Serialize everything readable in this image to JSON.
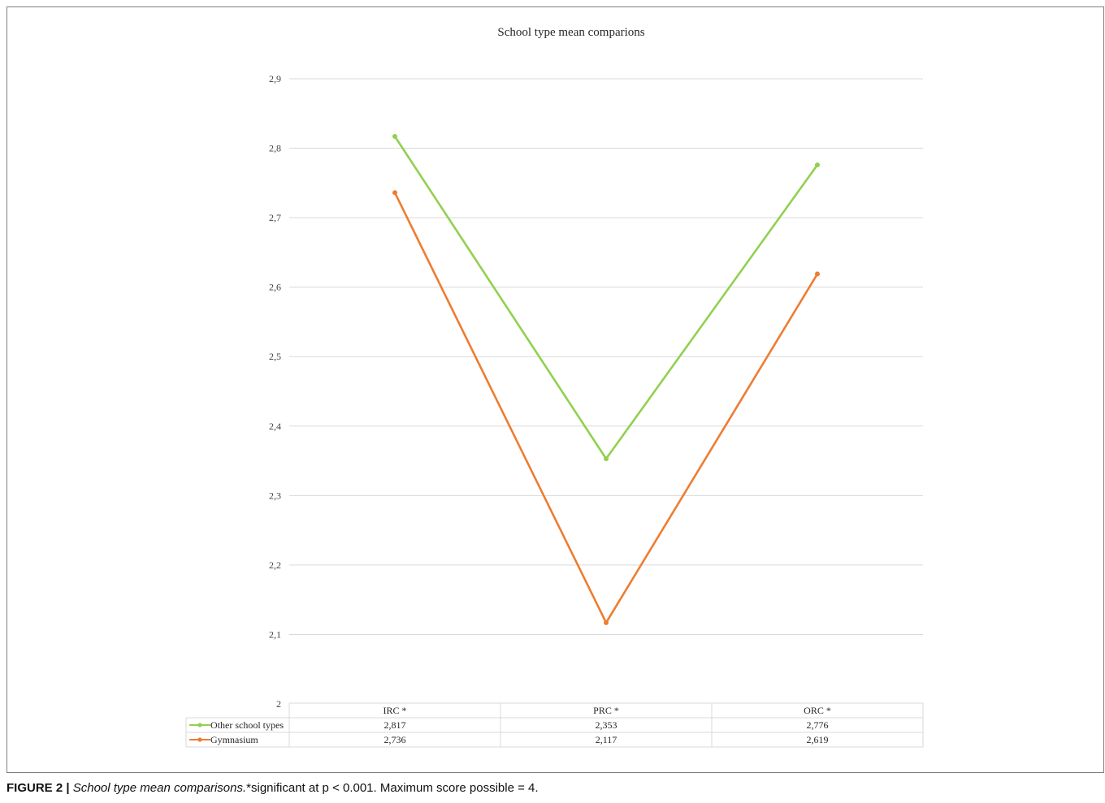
{
  "chart_data": {
    "type": "line",
    "title": "School type mean comparions",
    "categories": [
      "IRC *",
      "PRC *",
      "ORC *"
    ],
    "series": [
      {
        "name": "Other school types",
        "values": [
          2.817,
          2.353,
          2.776
        ],
        "display": [
          "2,817",
          "2,353",
          "2,776"
        ],
        "color": "#92d050"
      },
      {
        "name": "Gymnasium",
        "values": [
          2.736,
          2.117,
          2.619
        ],
        "display": [
          "2,736",
          "2,117",
          "2,619"
        ],
        "color": "#ed7d31"
      }
    ],
    "ylim": [
      2.0,
      2.9
    ],
    "yticks": [
      2.0,
      2.1,
      2.2,
      2.3,
      2.4,
      2.5,
      2.6,
      2.7,
      2.8,
      2.9
    ],
    "ytick_labels": [
      "2",
      "2,1",
      "2,2",
      "2,3",
      "2,4",
      "2,5",
      "2,6",
      "2,7",
      "2,8",
      "2,9"
    ],
    "grid": true,
    "legend": "data table below x-axis",
    "xlabel": "",
    "ylabel": ""
  },
  "caption": {
    "label": "FIGURE 2 |",
    "title": "School type mean comparisons.",
    "note": "*significant at p < 0.001. Maximum score possible = 4."
  },
  "colors": {
    "gridline": "#d9d9d9",
    "table_border": "#d9d9d9",
    "frame": "#7f7f7f"
  }
}
